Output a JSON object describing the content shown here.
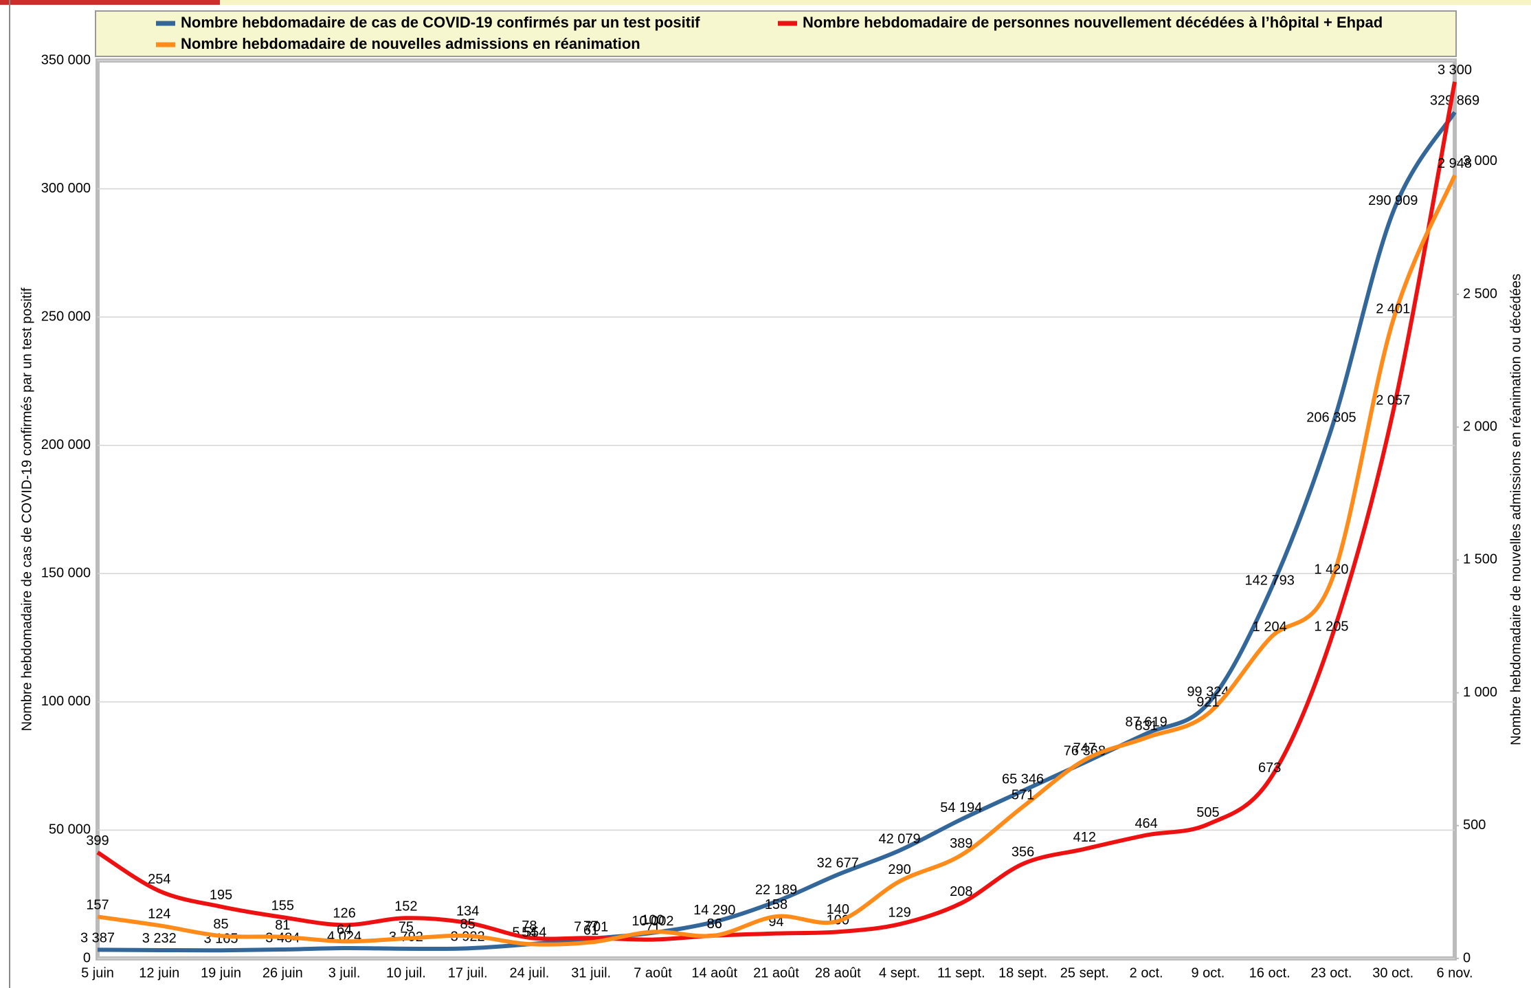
{
  "chart_data": {
    "type": "line",
    "categories": [
      "5 juin",
      "12 juin",
      "19 juin",
      "26 juin",
      "3 juil.",
      "10 juil.",
      "17 juil.",
      "24 juil.",
      "31 juil.",
      "7 août",
      "14 août",
      "21 août",
      "28 août",
      "4 sept.",
      "11 sept.",
      "18 sept.",
      "25 sept.",
      "2 oct.",
      "9 oct.",
      "16 oct.",
      "23 oct.",
      "30 oct.",
      "6 nov."
    ],
    "ylabel": "Nombre hebdomadaire de cas de COVID-19 confirmés par un test positif",
    "y2label": "Nombre hebdomadaire de nouvelles admissions en réanimation ou décédées",
    "ylim": [
      0,
      350000
    ],
    "yticks": [
      0,
      {
        "value": 50000,
        "label": "50 000"
      },
      {
        "value": 100000,
        "label": "100 000"
      },
      {
        "value": 150000,
        "label": "150 000"
      },
      {
        "value": 200000,
        "label": "200 000"
      },
      {
        "value": 250000,
        "label": "250 000"
      },
      {
        "value": 300000,
        "label": "300 000"
      },
      {
        "value": 350000,
        "label": "350 000"
      }
    ],
    "y2lim": [
      0,
      3380
    ],
    "y2ticks": [
      0,
      500,
      {
        "value": 1000,
        "label": "1 000"
      },
      {
        "value": 1500,
        "label": "1 500"
      },
      {
        "value": 2000,
        "label": "2 000"
      },
      {
        "value": 2500,
        "label": "2 500"
      },
      {
        "value": 3000,
        "label": "3 000"
      }
    ],
    "grid": true,
    "series": [
      {
        "name": "Nombre hebdomadaire de cas de COVID-19 confirmés par un test positif",
        "color": "#336699",
        "values": [
          3387,
          3232,
          3165,
          3484,
          4024,
          3792,
          3922,
          5554,
          7701,
          10002,
          14290,
          22189,
          32677,
          42079,
          54194,
          65346,
          76368,
          87619,
          99324,
          142793,
          206305,
          290909,
          329869
        ],
        "value_labels": [
          "3 387",
          "3 232",
          "3 165",
          "3 484",
          "4 024",
          "3 792",
          "3 922",
          "5 554",
          "7 701",
          "10 002",
          "14 290",
          "22 189",
          "32 677",
          "42 079",
          "54 194",
          "65 346",
          "76 368",
          "87 619",
          "99 324",
          "142 793",
          "206 305",
          "290 909",
          "329 869"
        ]
      },
      {
        "name": "Nombre hebdomadaire de personnes nouvellement décédées à l’hôpital + Ehpad",
        "color": "#ee1111",
        "axis": "y2",
        "values": [
          399,
          254,
          195,
          155,
          126,
          152,
          134,
          78,
          77,
          71,
          86,
          94,
          100,
          129,
          208,
          356,
          412,
          464,
          505,
          673,
          1205,
          2057,
          3300
        ],
        "value_labels": [
          "399",
          "254",
          "195",
          "155",
          "126",
          "152",
          "134",
          "78",
          "77",
          "71",
          "86",
          "94",
          "100",
          "129",
          "208",
          "356",
          "412",
          "464",
          "505",
          "673",
          "1 205",
          "2 057",
          "3 300"
        ]
      },
      {
        "name": "Nombre hebdomadaire de nouvelles admissions en réanimation",
        "color": "#ff8c1a",
        "axis": "y2",
        "values": [
          157,
          124,
          85,
          81,
          64,
          75,
          85,
          54,
          61,
          100,
          86,
          158,
          140,
          290,
          389,
          571,
          747,
          831,
          921,
          1204,
          1420,
          2401,
          2948
        ],
        "value_labels": [
          "157",
          "124",
          "85",
          "81",
          "64",
          "75",
          "85",
          "54",
          "61",
          "100",
          "86",
          "158",
          "140",
          "290",
          "389",
          "571",
          "747",
          "831",
          "921",
          "1 204",
          "1 420",
          "2 401",
          "2 948"
        ]
      }
    ]
  }
}
